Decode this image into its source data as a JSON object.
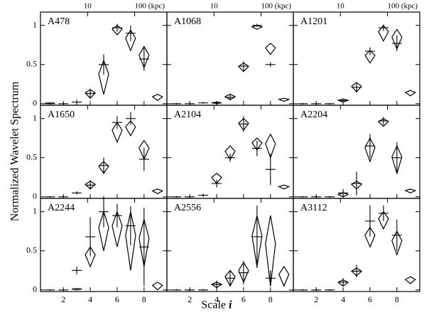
{
  "chart_data": {
    "type": "errorbar",
    "ylabel": "Normalized Wavelet Spectrum",
    "xlabel": "Scale",
    "xlabel_var": "i",
    "x": [
      1,
      2,
      3,
      4,
      5,
      6,
      7,
      8,
      9
    ],
    "xlim": [
      0.3,
      9.7
    ],
    "xticks": [
      2,
      4,
      6,
      8
    ],
    "x2lim": [
      1,
      485
    ],
    "x2scale": "log",
    "x2ticks": [
      {
        "value": 10,
        "label": "10"
      },
      {
        "value": 100,
        "label": "100 (kpc)"
      }
    ],
    "ylim": [
      -0.02,
      1.17
    ],
    "yticks": [
      0,
      0.5,
      1
    ],
    "panels": [
      {
        "label": "A478",
        "values": [
          0,
          0,
          0.02,
          0.13,
          0.5,
          0.97,
          0.9,
          0.57,
          null
        ],
        "errors": [
          0.01,
          0.01,
          0.03,
          0.06,
          0.13,
          0.05,
          0.1,
          0.15,
          null
        ],
        "low": [
          0,
          null,
          null,
          0.07,
          0.12,
          0.88,
          0.68,
          0.46,
          0.04
        ],
        "high": [
          0.01,
          null,
          null,
          0.18,
          0.55,
          1.0,
          0.94,
          0.73,
          0.12
        ]
      },
      {
        "label": "A1068",
        "values": [
          0,
          0,
          0.01,
          0.01,
          0.08,
          0.48,
          1.0,
          0.5,
          null
        ],
        "errors": [
          0.01,
          0.01,
          0.01,
          0.02,
          0.04,
          0.06,
          0.02,
          0.03,
          null
        ],
        "low": [
          null,
          null,
          null,
          0,
          0.05,
          0.41,
          0.95,
          0.63,
          0.03
        ],
        "high": [
          null,
          null,
          null,
          0.02,
          0.12,
          0.52,
          1.0,
          0.77,
          0.07
        ]
      },
      {
        "label": "A1201",
        "values": [
          0,
          0,
          0,
          0.04,
          0.21,
          0.67,
          0.97,
          0.77,
          null
        ],
        "errors": [
          0.01,
          0.01,
          0.01,
          0.02,
          0.06,
          0.05,
          0.04,
          0.1,
          null
        ],
        "low": [
          null,
          null,
          null,
          0.02,
          0.15,
          0.52,
          0.8,
          0.7,
          0.1
        ],
        "high": [
          null,
          null,
          null,
          0.06,
          0.27,
          0.68,
          1.0,
          0.95,
          0.17
        ]
      },
      {
        "label": "A1650",
        "values": [
          0,
          0,
          0.05,
          0.15,
          0.4,
          0.95,
          1.0,
          0.48,
          null
        ],
        "errors": [
          0.01,
          0.01,
          0.02,
          0.06,
          0.1,
          0.08,
          0.08,
          0.15,
          null
        ],
        "low": [
          null,
          null,
          null,
          0.1,
          0.3,
          0.7,
          0.78,
          0.48,
          0.04
        ],
        "high": [
          null,
          null,
          null,
          0.2,
          0.45,
          0.95,
          0.97,
          0.72,
          0.1
        ]
      },
      {
        "label": "A2104",
        "values": [
          0,
          0,
          0.02,
          0.17,
          0.5,
          0.93,
          0.62,
          0.35,
          null
        ],
        "errors": [
          0.01,
          0.01,
          0.02,
          0.05,
          0.05,
          0.1,
          0.1,
          0.2,
          null
        ],
        "low": [
          null,
          null,
          null,
          0.17,
          0.48,
          0.85,
          0.6,
          0.5,
          0.1
        ],
        "high": [
          null,
          null,
          null,
          0.3,
          0.65,
          1.0,
          0.75,
          0.8,
          0.15
        ]
      },
      {
        "label": "A2204",
        "values": [
          0,
          0,
          0,
          0.05,
          0.17,
          0.65,
          0.97,
          0.5,
          null
        ],
        "errors": [
          0.01,
          0.01,
          0.01,
          0.05,
          0.15,
          0.15,
          0.05,
          0.2,
          null
        ],
        "low": [
          null,
          null,
          null,
          0,
          0.1,
          0.45,
          0.9,
          0.3,
          0.05
        ],
        "high": [
          null,
          null,
          null,
          0.05,
          0.2,
          0.75,
          1.0,
          0.65,
          0.1
        ]
      },
      {
        "label": "A2244",
        "values": [
          0,
          0,
          0.25,
          0.68,
          1.0,
          0.95,
          0.82,
          0.55,
          null
        ],
        "errors": [
          0.01,
          0.01,
          0.05,
          0.25,
          0.2,
          0.15,
          0.25,
          0.5,
          null
        ],
        "low": [
          null,
          null,
          0,
          0.3,
          0.5,
          0.55,
          0.25,
          0.3,
          0
        ],
        "high": [
          null,
          null,
          0.02,
          0.55,
          1.0,
          1.0,
          1.0,
          0.9,
          0.1
        ]
      },
      {
        "label": "A2556",
        "values": [
          0,
          0,
          0,
          0.07,
          0.15,
          0.22,
          0.68,
          0.15,
          null
        ],
        "errors": [
          0.01,
          0.01,
          0.01,
          0.05,
          0.1,
          0.15,
          0.4,
          0.1,
          null
        ],
        "low": [
          null,
          null,
          null,
          0.03,
          0.05,
          0.1,
          0.3,
          0.05,
          0.05
        ],
        "high": [
          null,
          null,
          null,
          0.1,
          0.25,
          0.35,
          0.95,
          0.95,
          0.3
        ]
      },
      {
        "label": "A3112",
        "values": [
          0,
          0,
          0,
          0.1,
          0.24,
          0.88,
          0.98,
          0.7,
          null
        ],
        "errors": [
          0.01,
          0.01,
          0.01,
          0.05,
          0.08,
          0.2,
          0.1,
          0.2,
          null
        ],
        "low": [
          null,
          null,
          null,
          0.05,
          0.18,
          0.55,
          0.78,
          0.45,
          0.08
        ],
        "high": [
          null,
          null,
          null,
          0.13,
          0.28,
          0.8,
          1.0,
          0.75,
          0.17
        ]
      }
    ]
  }
}
